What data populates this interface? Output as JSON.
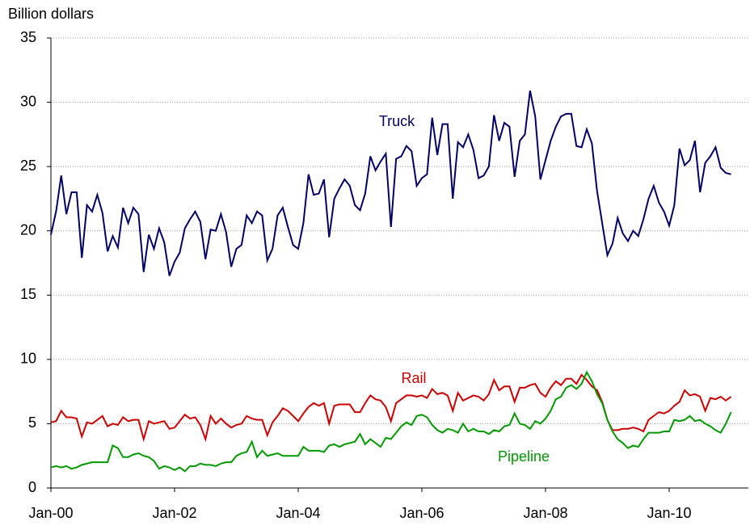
{
  "chart_data": {
    "type": "line",
    "y_axis_label": "Billion dollars",
    "categories": [
      "Jan-00",
      null,
      null,
      null,
      null,
      null,
      null,
      null,
      null,
      null,
      null,
      null,
      null,
      null,
      null,
      null,
      null,
      null,
      null,
      null,
      null,
      null,
      null,
      null,
      "Jan-02",
      null,
      null,
      null,
      null,
      null,
      null,
      null,
      null,
      null,
      null,
      null,
      null,
      null,
      null,
      null,
      null,
      null,
      null,
      null,
      null,
      null,
      null,
      null,
      "Jan-04",
      null,
      null,
      null,
      null,
      null,
      null,
      null,
      null,
      null,
      null,
      null,
      null,
      null,
      null,
      null,
      null,
      null,
      null,
      null,
      null,
      null,
      null,
      null,
      "Jan-06",
      null,
      null,
      null,
      null,
      null,
      null,
      null,
      null,
      null,
      null,
      null,
      null,
      null,
      null,
      null,
      null,
      null,
      null,
      null,
      null,
      null,
      null,
      null,
      "Jan-08",
      null,
      null,
      null,
      null,
      null,
      null,
      null,
      null,
      null,
      null,
      null,
      null,
      null,
      null,
      null,
      null,
      null,
      null,
      null,
      null,
      null,
      null,
      null,
      "Jan-10",
      null,
      null,
      null,
      null,
      null,
      null,
      null,
      null,
      null,
      null,
      null,
      null
    ],
    "series": [
      {
        "name": "Truck",
        "color": "#000066",
        "values": [
          19.7,
          21.5,
          24.3,
          21.3,
          23.0,
          23.0,
          17.9,
          22.0,
          21.5,
          22.8,
          21.4,
          18.4,
          19.6,
          18.7,
          21.8,
          20.6,
          21.8,
          21.3,
          16.8,
          19.7,
          18.6,
          20.2,
          19.1,
          16.5,
          17.6,
          18.3,
          20.2,
          20.9,
          21.5,
          20.7,
          17.8,
          20.1,
          20.0,
          21.3,
          19.9,
          17.2,
          18.6,
          18.9,
          21.2,
          20.6,
          21.5,
          21.2,
          17.7,
          18.6,
          21.2,
          21.8,
          20.3,
          18.9,
          18.6,
          20.6,
          24.4,
          22.8,
          22.9,
          24.0,
          19.5,
          22.5,
          23.3,
          24.0,
          23.5,
          22.0,
          21.6,
          22.9,
          25.8,
          24.7,
          25.4,
          26.0,
          20.3,
          25.6,
          25.8,
          26.6,
          26.2,
          23.5,
          24.1,
          24.4,
          28.8,
          25.9,
          28.3,
          28.3,
          22.5,
          26.9,
          26.5,
          27.5,
          26.3,
          24.1,
          24.3,
          25.0,
          29.0,
          27.0,
          28.4,
          28.1,
          24.2,
          27.0,
          27.5,
          30.9,
          28.9,
          24.0,
          25.5,
          27.0,
          28.1,
          28.9,
          29.1,
          29.1,
          26.6,
          26.5,
          27.9,
          26.8,
          23.1,
          20.6,
          18.1,
          19.0,
          21.0,
          19.8,
          19.2,
          20.0,
          19.6,
          20.9,
          22.5,
          23.5,
          22.2,
          21.5,
          20.4,
          22.0,
          26.4,
          25.1,
          25.5,
          27.0,
          23.0,
          25.3,
          25.8,
          26.5,
          24.9,
          24.5,
          24.4
        ]
      },
      {
        "name": "Rail",
        "color": "#cc0000",
        "values": [
          5.1,
          5.2,
          6.0,
          5.5,
          5.5,
          5.4,
          4.0,
          5.1,
          5.0,
          5.3,
          5.6,
          4.8,
          5.0,
          4.9,
          5.5,
          5.2,
          5.3,
          5.3,
          3.8,
          5.2,
          5.0,
          5.1,
          5.2,
          4.6,
          4.7,
          5.2,
          5.7,
          5.4,
          5.5,
          4.9,
          3.8,
          5.6,
          5.0,
          5.4,
          5.0,
          4.7,
          4.9,
          5.0,
          5.6,
          5.4,
          5.3,
          5.3,
          4.1,
          5.1,
          5.6,
          6.2,
          6.0,
          5.6,
          5.2,
          5.8,
          6.3,
          6.6,
          6.4,
          6.6,
          5.0,
          6.4,
          6.5,
          6.5,
          6.5,
          5.9,
          5.9,
          6.6,
          7.2,
          6.9,
          6.8,
          6.3,
          5.2,
          6.6,
          6.9,
          7.2,
          7.2,
          7.1,
          7.2,
          7.0,
          7.7,
          7.3,
          7.4,
          7.2,
          6.0,
          7.4,
          6.8,
          7.0,
          7.2,
          7.1,
          6.8,
          7.3,
          8.4,
          7.6,
          7.9,
          7.9,
          6.7,
          7.8,
          7.8,
          8.0,
          8.1,
          7.4,
          7.1,
          7.8,
          8.3,
          8.0,
          8.5,
          8.5,
          8.1,
          8.8,
          8.4,
          7.9,
          7.6,
          6.7,
          5.3,
          4.5,
          4.5,
          4.6,
          4.6,
          4.7,
          4.6,
          4.4,
          5.3,
          5.6,
          5.9,
          5.8,
          6.0,
          6.4,
          6.7,
          7.6,
          7.2,
          7.3,
          7.1,
          6.0,
          7.0,
          6.9,
          7.1,
          6.8,
          7.1
        ]
      },
      {
        "name": "Pipeline",
        "color": "#009900",
        "values": [
          1.6,
          1.7,
          1.6,
          1.7,
          1.5,
          1.6,
          1.8,
          1.9,
          2.0,
          2.0,
          2.0,
          2.0,
          3.3,
          3.1,
          2.4,
          2.4,
          2.6,
          2.7,
          2.5,
          2.4,
          2.1,
          1.5,
          1.7,
          1.6,
          1.4,
          1.6,
          1.3,
          1.7,
          1.7,
          1.9,
          1.8,
          1.8,
          1.7,
          1.9,
          2.0,
          2.0,
          2.5,
          2.7,
          2.8,
          3.6,
          2.4,
          2.9,
          2.5,
          2.6,
          2.7,
          2.5,
          2.5,
          2.5,
          2.5,
          3.2,
          2.9,
          2.9,
          2.9,
          2.8,
          3.3,
          3.4,
          3.2,
          3.4,
          3.5,
          3.6,
          4.2,
          3.4,
          3.8,
          3.5,
          3.2,
          3.9,
          3.8,
          4.3,
          4.8,
          5.1,
          4.9,
          5.6,
          5.7,
          5.5,
          4.9,
          4.5,
          4.3,
          4.6,
          4.5,
          4.3,
          5.0,
          4.4,
          4.6,
          4.4,
          4.4,
          4.2,
          4.5,
          4.4,
          4.8,
          4.9,
          5.8,
          5.0,
          4.9,
          4.6,
          5.2,
          5.0,
          5.4,
          6.0,
          6.9,
          7.1,
          7.8,
          8.0,
          7.7,
          8.1,
          9.0,
          8.3,
          7.3,
          6.6,
          5.3,
          4.4,
          3.8,
          3.5,
          3.1,
          3.3,
          3.2,
          3.8,
          4.3,
          4.3,
          4.3,
          4.4,
          4.4,
          5.3,
          5.2,
          5.3,
          5.6,
          5.2,
          5.3,
          5.0,
          4.8,
          4.5,
          4.3,
          5.0,
          5.9
        ]
      }
    ],
    "ylim": [
      0,
      35
    ],
    "yticks": [
      0,
      5,
      10,
      15,
      20,
      25,
      30,
      35
    ],
    "grid": true
  }
}
